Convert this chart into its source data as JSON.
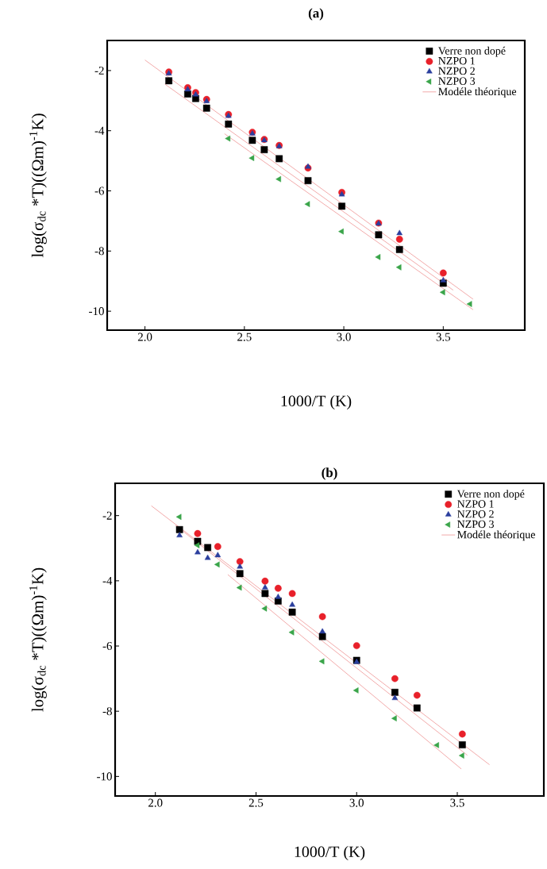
{
  "chart_data": [
    {
      "type": "scatter",
      "title": "(a)",
      "xlabel": "1000/T (K)",
      "ylabel": "log(σ$_{dc}$ *T)((Ωm)$^{-1}$K)",
      "xlim": [
        1.81,
        3.91
      ],
      "ylim": [
        -10.63,
        -1.0
      ],
      "xticks": [
        {
          "value": 2.0,
          "label": "2.0"
        },
        {
          "value": 2.5,
          "label": "2.5"
        },
        {
          "value": 3.0,
          "label": "3.0"
        },
        {
          "value": 3.5,
          "label": "3.5"
        }
      ],
      "yticks": [
        -2,
        -4,
        -6,
        -8,
        -10
      ],
      "grid": false,
      "legend": "top right",
      "series": [
        {
          "name": "Verre non dopé",
          "color": "#000000",
          "marker": "square",
          "x": [
            2.12,
            2.215,
            2.255,
            2.31,
            2.42,
            2.54,
            2.6,
            2.675,
            2.82,
            2.99,
            3.175,
            3.28,
            3.5
          ],
          "values": [
            -2.34,
            -2.78,
            -2.93,
            -3.25,
            -3.78,
            -4.32,
            -4.63,
            -4.93,
            -5.66,
            -6.51,
            -7.46,
            -7.95,
            -9.07
          ]
        },
        {
          "name": "NZPO 1",
          "color": "#e8202a",
          "marker": "circle",
          "x": [
            2.12,
            2.215,
            2.255,
            2.31,
            2.42,
            2.54,
            2.6,
            2.675,
            2.82,
            2.99,
            3.175,
            3.28,
            3.5
          ],
          "values": [
            -2.05,
            -2.57,
            -2.73,
            -2.96,
            -3.46,
            -4.05,
            -4.29,
            -4.49,
            -5.24,
            -6.05,
            -7.07,
            -7.61,
            -8.73
          ]
        },
        {
          "name": "NZPO 2",
          "color": "#2b3f9e",
          "marker": "triangle",
          "x": [
            2.12,
            2.215,
            2.255,
            2.31,
            2.42,
            2.54,
            2.6,
            2.675,
            2.82,
            2.99,
            3.175,
            3.28,
            3.5
          ],
          "values": [
            -2.1,
            -2.63,
            -2.8,
            -3.02,
            -3.51,
            -4.1,
            -4.32,
            -4.52,
            -5.2,
            -6.12,
            -7.09,
            -7.41,
            -8.98
          ]
        },
        {
          "name": "NZPO 3",
          "color": "#3aa54a",
          "marker": "triangle-left",
          "x": [
            2.42,
            2.54,
            2.675,
            2.82,
            2.99,
            3.175,
            3.28,
            3.5,
            3.635
          ],
          "values": [
            -4.26,
            -4.91,
            -5.61,
            -6.44,
            -7.35,
            -8.2,
            -8.54,
            -9.37,
            -9.76
          ]
        },
        {
          "name": "Modéle théorique",
          "type": "line",
          "color": "#f0a0a0",
          "marker": "none",
          "x": [
            2.0,
            3.65
          ],
          "values": [
            -1.65,
            -9.6
          ]
        },
        {
          "type": "line",
          "color": "#f0a0a0",
          "marker": "none",
          "x": [
            2.1,
            3.55
          ],
          "values": [
            -2.45,
            -9.3
          ]
        },
        {
          "type": "line",
          "color": "#f0a0a0",
          "marker": "none",
          "x": [
            2.4,
            3.65
          ],
          "values": [
            -4.1,
            -9.95
          ]
        }
      ]
    },
    {
      "type": "scatter",
      "title": "(b)",
      "xlabel": "1000/T (K)",
      "ylabel": "log(σ$_{dc}$ *T)((Ωm)$^{-1}$K)",
      "xlim": [
        1.8,
        3.93
      ],
      "ylim": [
        -10.6,
        -1.01
      ],
      "xticks": [
        {
          "value": 2.0,
          "label": "2.0"
        },
        {
          "value": 2.5,
          "label": "2.5"
        },
        {
          "value": 3.0,
          "label": "3.0"
        },
        {
          "value": 3.5,
          "label": "3.5"
        }
      ],
      "yticks": [
        -2,
        -4,
        -6,
        -8,
        -10
      ],
      "grid": false,
      "legend": "top right",
      "series": [
        {
          "name": "Verre non dopé",
          "color": "#000000",
          "marker": "square",
          "x": [
            2.12,
            2.21,
            2.26,
            2.42,
            2.545,
            2.61,
            2.68,
            2.83,
            3.0,
            3.19,
            3.3,
            3.525
          ],
          "values": [
            -2.43,
            -2.79,
            -2.98,
            -3.78,
            -4.39,
            -4.62,
            -4.96,
            -5.71,
            -6.44,
            -7.42,
            -7.9,
            -9.03
          ]
        },
        {
          "name": "NZPO 1",
          "color": "#e8202a",
          "marker": "circle",
          "x": [
            2.21,
            2.31,
            2.42,
            2.545,
            2.61,
            2.68,
            2.83,
            3.0,
            3.19,
            3.3,
            3.525
          ],
          "values": [
            -2.55,
            -2.95,
            -3.41,
            -4.01,
            -4.23,
            -4.39,
            -5.1,
            -5.99,
            -7.0,
            -7.51,
            -8.7
          ]
        },
        {
          "name": "NZPO 2",
          "color": "#2b3f9e",
          "marker": "triangle",
          "x": [
            2.12,
            2.21,
            2.26,
            2.31,
            2.42,
            2.545,
            2.61,
            2.68,
            2.83,
            3.0,
            3.19
          ],
          "values": [
            -2.61,
            -3.13,
            -3.3,
            -3.22,
            -3.57,
            -4.21,
            -4.5,
            -4.74,
            -5.56,
            -6.49,
            -7.6
          ]
        },
        {
          "name": "NZPO 3",
          "color": "#3aa54a",
          "marker": "triangle-left",
          "x": [
            2.12,
            2.21,
            2.31,
            2.42,
            2.545,
            2.68,
            2.83,
            3.0,
            3.19,
            3.4,
            3.525
          ],
          "values": [
            -2.04,
            -2.91,
            -3.5,
            -4.21,
            -4.85,
            -5.58,
            -6.47,
            -7.36,
            -8.22,
            -9.04,
            -9.36
          ]
        },
        {
          "name": "Modéle théorique",
          "type": "line",
          "color": "#f0a0a0",
          "marker": "none",
          "x": [
            1.98,
            3.66
          ],
          "values": [
            -1.7,
            -9.64
          ]
        },
        {
          "type": "line",
          "color": "#f0a0a0",
          "marker": "none",
          "x": [
            2.1,
            3.55
          ],
          "values": [
            -2.3,
            -9.35
          ]
        },
        {
          "type": "line",
          "color": "#f0a0a0",
          "marker": "none",
          "x": [
            2.36,
            3.52
          ],
          "values": [
            -3.81,
            -9.77
          ]
        }
      ]
    }
  ]
}
